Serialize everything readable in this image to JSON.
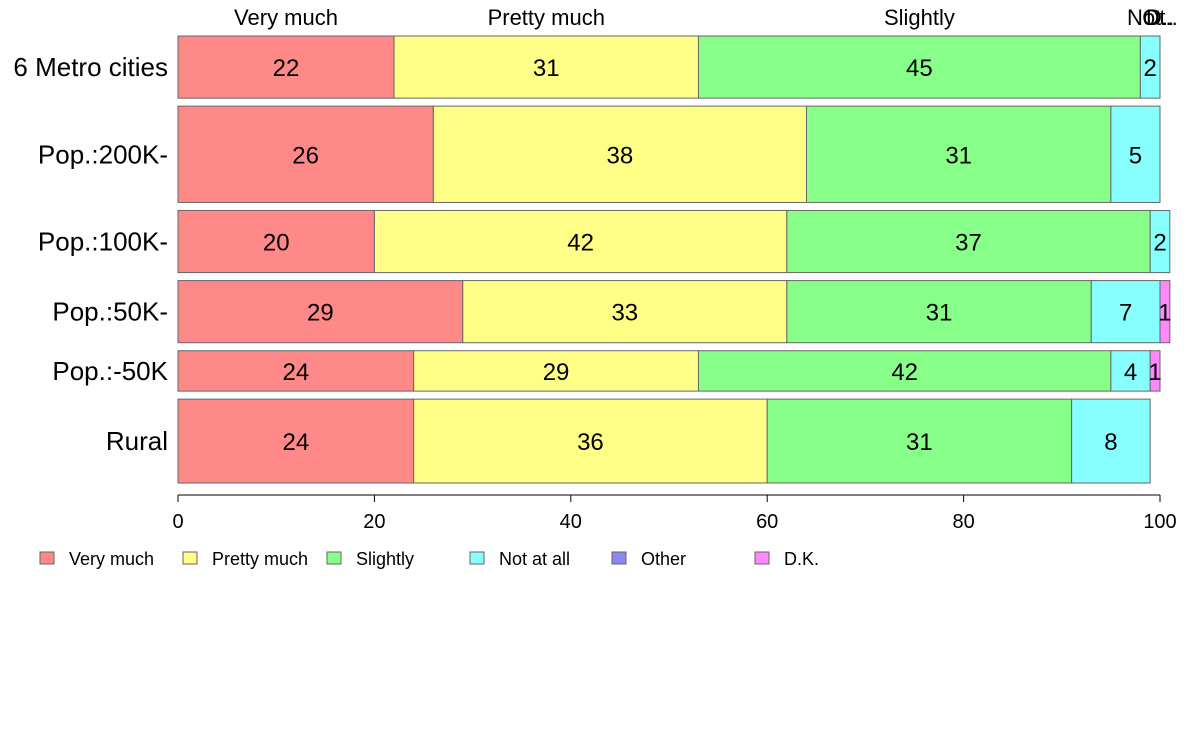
{
  "chart_data": {
    "type": "bar",
    "orientation": "horizontal",
    "stacked": true,
    "categories": [
      "6 Metro cities",
      "Pop.:200K-",
      "Pop.:100K-",
      "Pop.:50K-",
      "Pop.:-50K",
      "Rural"
    ],
    "series": [
      {
        "name": "Very much",
        "color": "#FF8888",
        "values": [
          22,
          26,
          20,
          29,
          24,
          24
        ],
        "labels": [
          "22",
          "26",
          "20",
          "29",
          "24",
          "24"
        ]
      },
      {
        "name": "Pretty much",
        "color": "#FFFF88",
        "values": [
          31,
          38,
          42,
          33,
          29,
          36
        ],
        "labels": [
          "31",
          "38",
          "42",
          "33",
          "29",
          "36"
        ]
      },
      {
        "name": "Slightly",
        "color": "#88FF88",
        "values": [
          45,
          31,
          37,
          31,
          42,
          31
        ],
        "labels": [
          "45",
          "31",
          "37",
          "31",
          "42",
          "31"
        ]
      },
      {
        "name": "Not at all",
        "color": "#88FFFF",
        "values": [
          2,
          5,
          2,
          7,
          4,
          8
        ],
        "labels": [
          "2",
          "5",
          "2",
          "7",
          "4",
          "8"
        ]
      },
      {
        "name": "Other",
        "color": "#8888EE",
        "values": [
          0,
          0,
          0,
          0,
          0,
          0
        ],
        "labels": [
          "",
          "",
          "",
          "",
          "",
          ""
        ]
      },
      {
        "name": "D.K.",
        "color": "#FF88FF",
        "values": [
          0,
          0,
          0,
          1,
          1,
          0
        ],
        "labels": [
          "",
          "",
          "",
          "1",
          "1",
          ""
        ]
      }
    ],
    "row_weights": [
      1.0,
      1.55,
      1.0,
      1.0,
      0.65,
      1.35
    ],
    "top_labels": [
      "Very much",
      "Pretty much",
      "Slightly",
      "Not..",
      "Ot..",
      "D.."
    ],
    "xlim": [
      0,
      100
    ],
    "xticks": [
      "0",
      "20",
      "40",
      "60",
      "80",
      "100"
    ],
    "xlabel": "",
    "ylabel": "",
    "title": "",
    "grid": false,
    "legend": "bottom-left"
  }
}
